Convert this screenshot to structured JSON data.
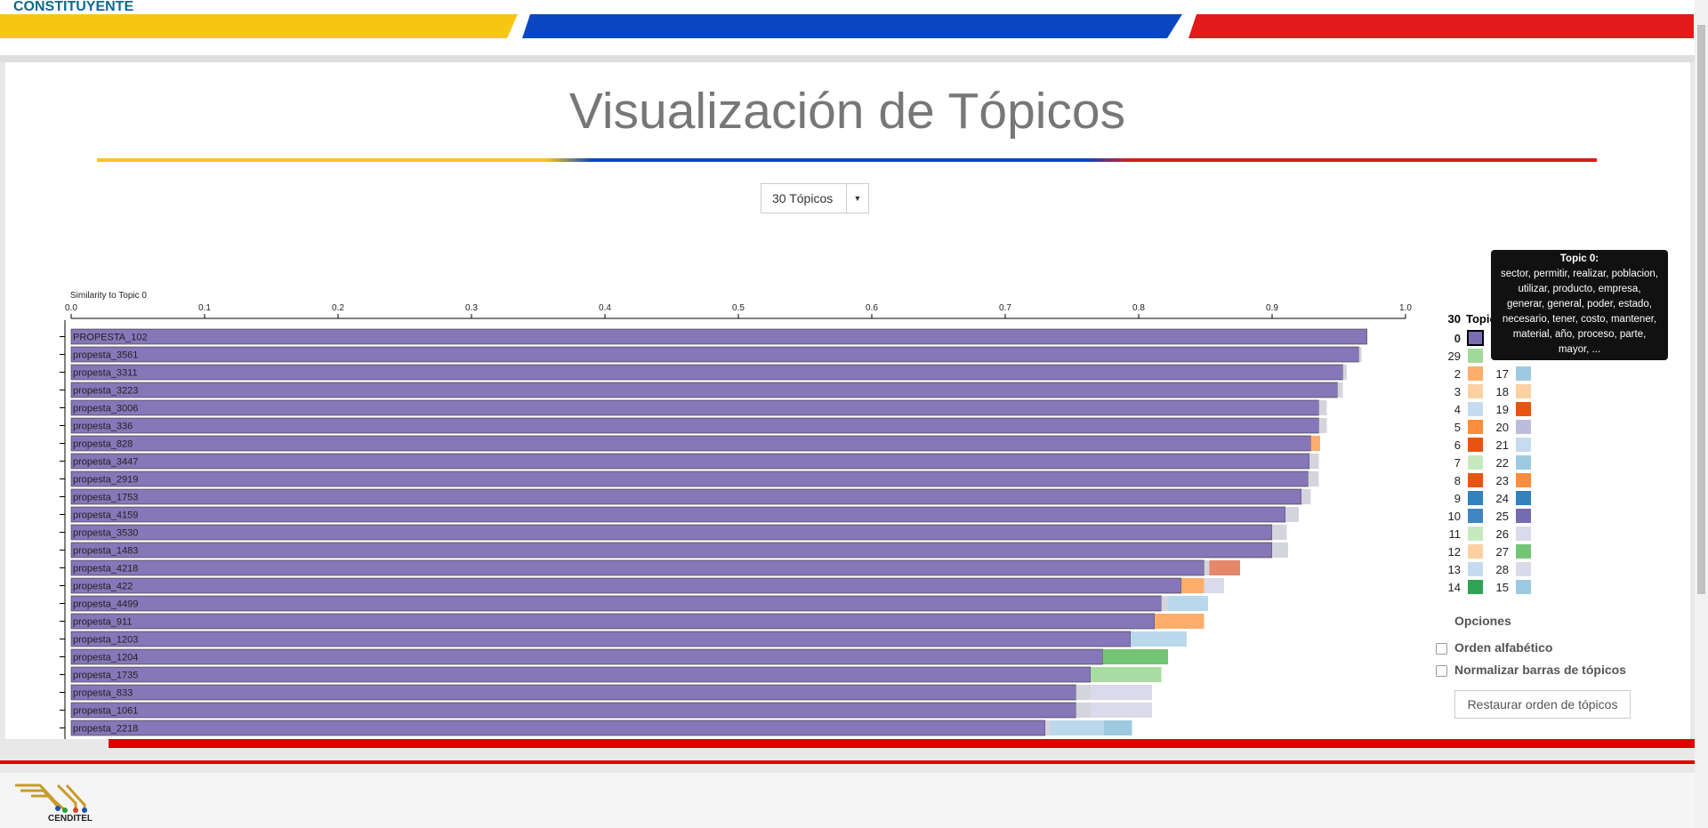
{
  "header": {
    "brand": "CONSTITUYENTE",
    "title": "Visualización de Tópicos",
    "select": "30 Tópicos"
  },
  "chart_data": {
    "type": "bar",
    "orientation": "horizontal",
    "stacked": true,
    "xlabel": "Similarity to Topic 0",
    "categories": [
      "PROPESTA_102",
      "propesta_3561",
      "propesta_3311",
      "propesta_3223",
      "propesta_3006",
      "propesta_336",
      "propesta_828",
      "propesta_3447",
      "propesta_2919",
      "propesta_1753",
      "propesta_4159",
      "propesta_3530",
      "propesta_1483",
      "propesta_4218",
      "propesta_422",
      "propesta_4499",
      "propesta_911",
      "propesta_1203",
      "propesta_1204",
      "propesta_1735",
      "propesta_833",
      "propesta_1061",
      "propesta_2218"
    ],
    "xlim": [
      0,
      1
    ],
    "xticks": [
      {
        "value": 0,
        "label": "0.0"
      },
      0.1,
      0.2,
      0.3,
      0.4,
      0.5,
      0.6,
      0.7,
      0.8,
      0.9,
      {
        "value": 1,
        "label": "1.0"
      }
    ],
    "series": [
      {
        "name": "0",
        "color": "#8677b9",
        "values": [
          0.971,
          0.965,
          0.953,
          0.949,
          0.935,
          0.935,
          0.929,
          0.928,
          0.927,
          0.922,
          0.91,
          0.9,
          0.9,
          0.849,
          0.832,
          0.817,
          0.812,
          0.794,
          0.773,
          0.764,
          0.753,
          0.753,
          0.73
        ]
      },
      {
        "name": "28",
        "color": "#d4d4dc",
        "values": [
          0,
          0.002,
          0.003,
          0.004,
          0.006,
          0.006,
          0,
          0.007,
          0.008,
          0.007,
          0.01,
          0.011,
          0.012,
          0.004,
          0,
          0.005,
          0,
          0,
          0,
          0,
          0.011,
          0.011,
          0.004
        ]
      },
      {
        "name": "2",
        "color": "#fdae6b",
        "values": [
          0,
          0,
          0,
          0,
          0,
          0,
          0.007,
          0,
          0,
          0,
          0,
          0,
          0,
          0,
          0.017,
          0,
          0.037,
          0,
          0,
          0,
          0,
          0,
          0
        ]
      },
      {
        "name": "8",
        "color": "#e5876b",
        "values": [
          0,
          0,
          0,
          0,
          0,
          0,
          0,
          0,
          0,
          0,
          0,
          0,
          0,
          0.023,
          0,
          0,
          0,
          0,
          0,
          0,
          0,
          0,
          0
        ]
      },
      {
        "name": "26",
        "color": "#dadaeb",
        "values": [
          0,
          0,
          0,
          0,
          0,
          0,
          0,
          0,
          0,
          0,
          0,
          0,
          0,
          0,
          0.015,
          0,
          0,
          0,
          0,
          0,
          0.046,
          0.046,
          0
        ]
      },
      {
        "name": "4",
        "color": "#b9d8ec",
        "values": [
          0,
          0,
          0,
          0,
          0,
          0,
          0,
          0,
          0,
          0,
          0,
          0,
          0,
          0,
          0,
          0.03,
          0,
          0.042,
          0,
          0,
          0,
          0,
          0.04
        ]
      },
      {
        "name": "15",
        "color": "#9ecae1",
        "values": [
          0,
          0,
          0,
          0,
          0,
          0,
          0,
          0,
          0,
          0,
          0,
          0,
          0,
          0,
          0,
          0,
          0,
          0,
          0,
          0,
          0,
          0,
          0.021
        ]
      },
      {
        "name": "14",
        "color": "#74c476",
        "values": [
          0,
          0,
          0,
          0,
          0,
          0,
          0,
          0,
          0,
          0,
          0,
          0,
          0,
          0,
          0,
          0,
          0,
          0,
          0.049,
          0,
          0,
          0,
          0
        ]
      },
      {
        "name": "7",
        "color": "#a8dca2",
        "values": [
          0,
          0,
          0,
          0,
          0,
          0,
          0,
          0,
          0,
          0,
          0,
          0,
          0,
          0,
          0,
          0,
          0,
          0,
          0,
          0.053,
          0,
          0,
          0
        ]
      }
    ]
  },
  "legend": {
    "count": "30",
    "header": "Topics",
    "left": [
      {
        "label": "0",
        "color": "#7b6db4"
      },
      {
        "label": "29",
        "color": "#a1d99b"
      },
      {
        "label": "2",
        "color": "#fdae6b"
      },
      {
        "label": "3",
        "color": "#fdd0a2"
      },
      {
        "label": "4",
        "color": "#c6dbef"
      },
      {
        "label": "5",
        "color": "#fd8d3c"
      },
      {
        "label": "6",
        "color": "#e6550d"
      },
      {
        "label": "7",
        "color": "#c7e9c0"
      },
      {
        "label": "8",
        "color": "#e6550d"
      },
      {
        "label": "9",
        "color": "#3182bd"
      },
      {
        "label": "10",
        "color": "#3f86c2"
      },
      {
        "label": "11",
        "color": "#c7e9c0"
      },
      {
        "label": "12",
        "color": "#fdd0a2"
      },
      {
        "label": "13",
        "color": "#c6dbef"
      },
      {
        "label": "14",
        "color": "#31a354"
      }
    ],
    "right": [
      {
        "label": "17",
        "color": "#9ecae1"
      },
      {
        "label": "18",
        "color": "#fdd0a2"
      },
      {
        "label": "19",
        "color": "#e6550d"
      },
      {
        "label": "20",
        "color": "#bcbddc"
      },
      {
        "label": "21",
        "color": "#c6dbef"
      },
      {
        "label": "22",
        "color": "#9ecae1"
      },
      {
        "label": "23",
        "color": "#fd8d3c"
      },
      {
        "label": "24",
        "color": "#3182bd"
      },
      {
        "label": "25",
        "color": "#756bb1"
      },
      {
        "label": "26",
        "color": "#dadaeb"
      },
      {
        "label": "27",
        "color": "#74c476"
      },
      {
        "label": "28",
        "color": "#dadaeb"
      },
      {
        "label": "15",
        "color": "#9ecae1"
      }
    ]
  },
  "tooltip": {
    "title": "Topic 0:",
    "text": "sector, permitir, realizar, poblacion, utilizar, producto, empresa, generar, general, poder, estado, necesario, tener, costo, mantener, material, año, proceso, parte, mayor, ..."
  },
  "options": {
    "title": "Opciones",
    "checkboxes": [
      "Orden alfabético",
      "Normalizar barras de tópicos"
    ],
    "button": "Restaurar orden de tópicos"
  },
  "footer": {
    "logo": "CENDITEL"
  }
}
